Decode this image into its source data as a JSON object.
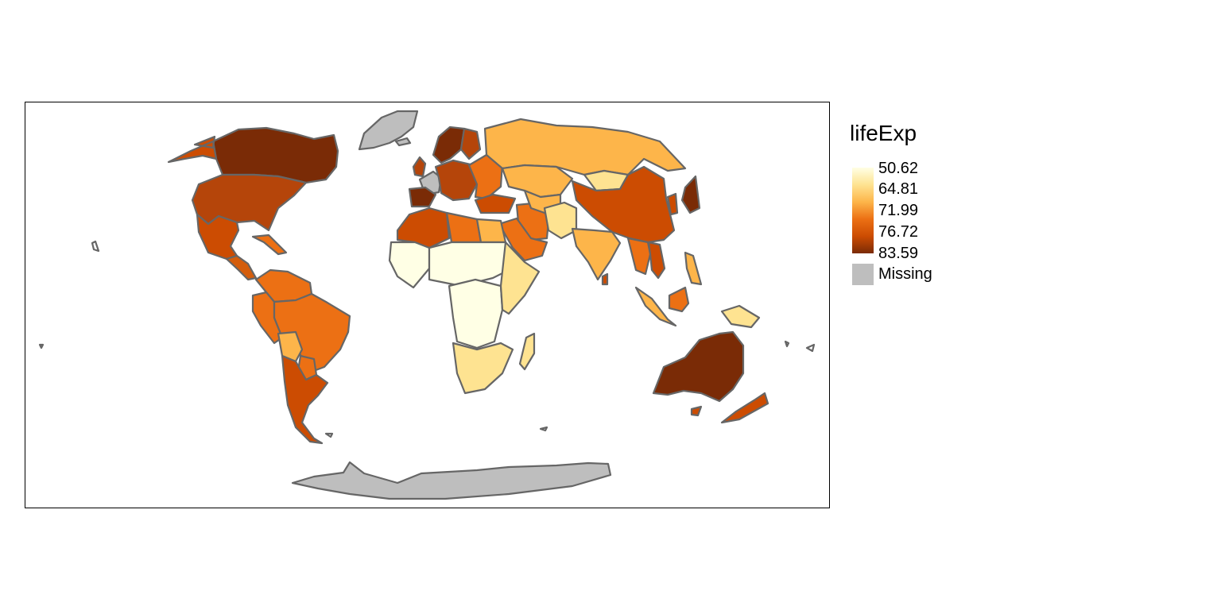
{
  "legend": {
    "title": "lifeExp",
    "breaks": [
      "50.62",
      "64.81",
      "71.99",
      "76.72",
      "83.59"
    ],
    "missing_label": "Missing",
    "colors": {
      "ramp": [
        "#ffffe5",
        "#fee391",
        "#fdb54a",
        "#ec7014",
        "#cc4c02",
        "#7a2b06"
      ],
      "missing": "#bebebe",
      "border": "#666666",
      "frame": "#000000"
    }
  },
  "map": {
    "variable": "lifeExp",
    "countries": [
      {
        "name": "Canada",
        "fill": "#7a2b06"
      },
      {
        "name": "Alaska",
        "fill": "#cc4c02"
      },
      {
        "name": "United States",
        "fill": "#b5450a"
      },
      {
        "name": "Mexico",
        "fill": "#cc4c02"
      },
      {
        "name": "Central America",
        "fill": "#d45d0c"
      },
      {
        "name": "Caribbean",
        "fill": "#ec7014"
      },
      {
        "name": "Greenland",
        "fill": "#bebebe"
      },
      {
        "name": "Iceland",
        "fill": "#bebebe"
      },
      {
        "name": "Colombia/Venezuela",
        "fill": "#ec7014"
      },
      {
        "name": "Ecuador/Peru",
        "fill": "#ec7014"
      },
      {
        "name": "Brazil",
        "fill": "#ec7014"
      },
      {
        "name": "Bolivia",
        "fill": "#fdb54a"
      },
      {
        "name": "Paraguay",
        "fill": "#ec7014"
      },
      {
        "name": "Argentina/Chile",
        "fill": "#cc4c02"
      },
      {
        "name": "Scandinavia",
        "fill": "#7a2b06"
      },
      {
        "name": "Finland",
        "fill": "#b5450a"
      },
      {
        "name": "United Kingdom",
        "fill": "#b5450a"
      },
      {
        "name": "France",
        "fill": "#bebebe"
      },
      {
        "name": "Spain/Portugal",
        "fill": "#7a2b06"
      },
      {
        "name": "Central Europe",
        "fill": "#b5450a"
      },
      {
        "name": "Eastern Europe",
        "fill": "#ec7014"
      },
      {
        "name": "Russia",
        "fill": "#fdb54a"
      },
      {
        "name": "Kazakhstan",
        "fill": "#fdb54a"
      },
      {
        "name": "Mongolia",
        "fill": "#fee391"
      },
      {
        "name": "China",
        "fill": "#cc4c02"
      },
      {
        "name": "Japan",
        "fill": "#7a2b06"
      },
      {
        "name": "Korea",
        "fill": "#cc4c02"
      },
      {
        "name": "Turkey",
        "fill": "#cc4c02"
      },
      {
        "name": "Iran",
        "fill": "#ec7014"
      },
      {
        "name": "Central Asia",
        "fill": "#fdb54a"
      },
      {
        "name": "Afghanistan/Pakistan",
        "fill": "#fee391"
      },
      {
        "name": "Arabia",
        "fill": "#ec7014"
      },
      {
        "name": "India",
        "fill": "#fdb54a"
      },
      {
        "name": "Sri Lanka",
        "fill": "#cc4c02"
      },
      {
        "name": "Southeast Asia",
        "fill": "#ec7014"
      },
      {
        "name": "Vietnam",
        "fill": "#cc4c02"
      },
      {
        "name": "Philippines",
        "fill": "#fdb54a"
      },
      {
        "name": "Sumatra",
        "fill": "#fdb54a"
      },
      {
        "name": "Borneo",
        "fill": "#ec7014"
      },
      {
        "name": "New Guinea",
        "fill": "#fee391"
      },
      {
        "name": "Morocco/Algeria",
        "fill": "#cc4c02"
      },
      {
        "name": "Libya",
        "fill": "#ec7014"
      },
      {
        "name": "Egypt",
        "fill": "#fdb54a"
      },
      {
        "name": "West Africa",
        "fill": "#ffffe5"
      },
      {
        "name": "Sahel",
        "fill": "#ffffe5"
      },
      {
        "name": "Central Africa",
        "fill": "#ffffe5"
      },
      {
        "name": "East Africa",
        "fill": "#fee391"
      },
      {
        "name": "Southern Africa",
        "fill": "#fee391"
      },
      {
        "name": "Madagascar",
        "fill": "#fee391"
      },
      {
        "name": "Australia",
        "fill": "#7a2b06"
      },
      {
        "name": "Tasmania",
        "fill": "#cc4c02"
      },
      {
        "name": "New Zealand",
        "fill": "#cc4c02"
      },
      {
        "name": "Antarctica",
        "fill": "#bebebe"
      }
    ]
  }
}
